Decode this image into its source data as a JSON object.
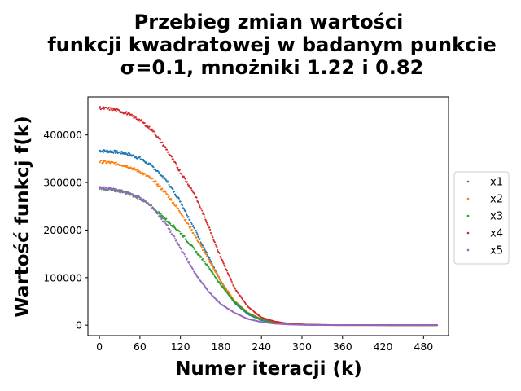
{
  "chart_data": {
    "type": "scatter",
    "title_lines": [
      "Przebieg zmian wartości",
      "funkcji kwadratowej w badanym punkcie",
      "σ=0.1, mnożniki 1.22 i 0.82"
    ],
    "xlabel": "Numer iteracji (k)",
    "ylabel": "Wartość funkcj f(k)",
    "xlim": [
      -17,
      517
    ],
    "ylim": [
      -22000,
      480000
    ],
    "xticks": [
      0,
      60,
      120,
      180,
      240,
      300,
      360,
      420,
      480
    ],
    "yticks": [
      0,
      100000,
      200000,
      300000,
      400000
    ],
    "grid": false,
    "legend_position": "center-right-outside",
    "series": [
      {
        "name": "x1",
        "color": "#1f77b4",
        "points": [
          [
            0,
            367000
          ],
          [
            20,
            365000
          ],
          [
            40,
            361000
          ],
          [
            60,
            351000
          ],
          [
            80,
            332000
          ],
          [
            100,
            303000
          ],
          [
            120,
            260000
          ],
          [
            140,
            205000
          ],
          [
            160,
            148000
          ],
          [
            180,
            91000
          ],
          [
            200,
            47000
          ],
          [
            220,
            23000
          ],
          [
            240,
            10500
          ],
          [
            260,
            5200
          ],
          [
            280,
            2400
          ],
          [
            300,
            1200
          ],
          [
            320,
            500
          ],
          [
            340,
            250
          ],
          [
            360,
            120
          ],
          [
            400,
            50
          ],
          [
            450,
            20
          ],
          [
            500,
            10
          ]
        ]
      },
      {
        "name": "x2",
        "color": "#ff7f0e",
        "points": [
          [
            0,
            344000
          ],
          [
            20,
            341000
          ],
          [
            40,
            335000
          ],
          [
            60,
            323000
          ],
          [
            80,
            305000
          ],
          [
            100,
            275000
          ],
          [
            120,
            238000
          ],
          [
            140,
            192000
          ],
          [
            160,
            142000
          ],
          [
            180,
            92000
          ],
          [
            200,
            51000
          ],
          [
            220,
            26000
          ],
          [
            240,
            12500
          ],
          [
            260,
            6000
          ],
          [
            280,
            2800
          ],
          [
            300,
            1400
          ],
          [
            320,
            600
          ],
          [
            340,
            300
          ],
          [
            360,
            150
          ],
          [
            400,
            60
          ],
          [
            450,
            25
          ],
          [
            500,
            10
          ]
        ]
      },
      {
        "name": "x3",
        "color": "#2ca02c",
        "points": [
          [
            0,
            289000
          ],
          [
            20,
            285000
          ],
          [
            40,
            278000
          ],
          [
            60,
            267000
          ],
          [
            80,
            246000
          ],
          [
            100,
            220000
          ],
          [
            120,
            195000
          ],
          [
            140,
            160000
          ],
          [
            160,
            126000
          ],
          [
            180,
            84000
          ],
          [
            200,
            49000
          ],
          [
            220,
            25000
          ],
          [
            240,
            12000
          ],
          [
            260,
            6000
          ],
          [
            280,
            2800
          ],
          [
            300,
            1300
          ],
          [
            320,
            600
          ],
          [
            340,
            300
          ],
          [
            360,
            150
          ],
          [
            400,
            60
          ],
          [
            450,
            25
          ],
          [
            500,
            10
          ]
        ]
      },
      {
        "name": "x4",
        "color": "#d62728",
        "points": [
          [
            0,
            457000
          ],
          [
            20,
            454000
          ],
          [
            40,
            446000
          ],
          [
            60,
            431000
          ],
          [
            80,
            408000
          ],
          [
            100,
            368000
          ],
          [
            120,
            322000
          ],
          [
            140,
            278000
          ],
          [
            160,
            214000
          ],
          [
            180,
            142000
          ],
          [
            200,
            78000
          ],
          [
            220,
            39000
          ],
          [
            240,
            16000
          ],
          [
            260,
            7500
          ],
          [
            280,
            3200
          ],
          [
            300,
            1500
          ],
          [
            320,
            650
          ],
          [
            340,
            300
          ],
          [
            360,
            150
          ],
          [
            400,
            60
          ],
          [
            450,
            25
          ],
          [
            500,
            10
          ]
        ]
      },
      {
        "name": "x5",
        "color": "#9467bd",
        "points": [
          [
            0,
            289000
          ],
          [
            20,
            285000
          ],
          [
            40,
            279000
          ],
          [
            60,
            268000
          ],
          [
            80,
            246000
          ],
          [
            100,
            210000
          ],
          [
            120,
            162000
          ],
          [
            140,
            113000
          ],
          [
            160,
            73000
          ],
          [
            180,
            44000
          ],
          [
            200,
            26000
          ],
          [
            220,
            13000
          ],
          [
            240,
            6500
          ],
          [
            260,
            3200
          ],
          [
            280,
            1500
          ],
          [
            300,
            700
          ],
          [
            320,
            350
          ],
          [
            340,
            180
          ],
          [
            360,
            90
          ],
          [
            400,
            40
          ],
          [
            450,
            15
          ],
          [
            500,
            5
          ]
        ]
      }
    ]
  }
}
